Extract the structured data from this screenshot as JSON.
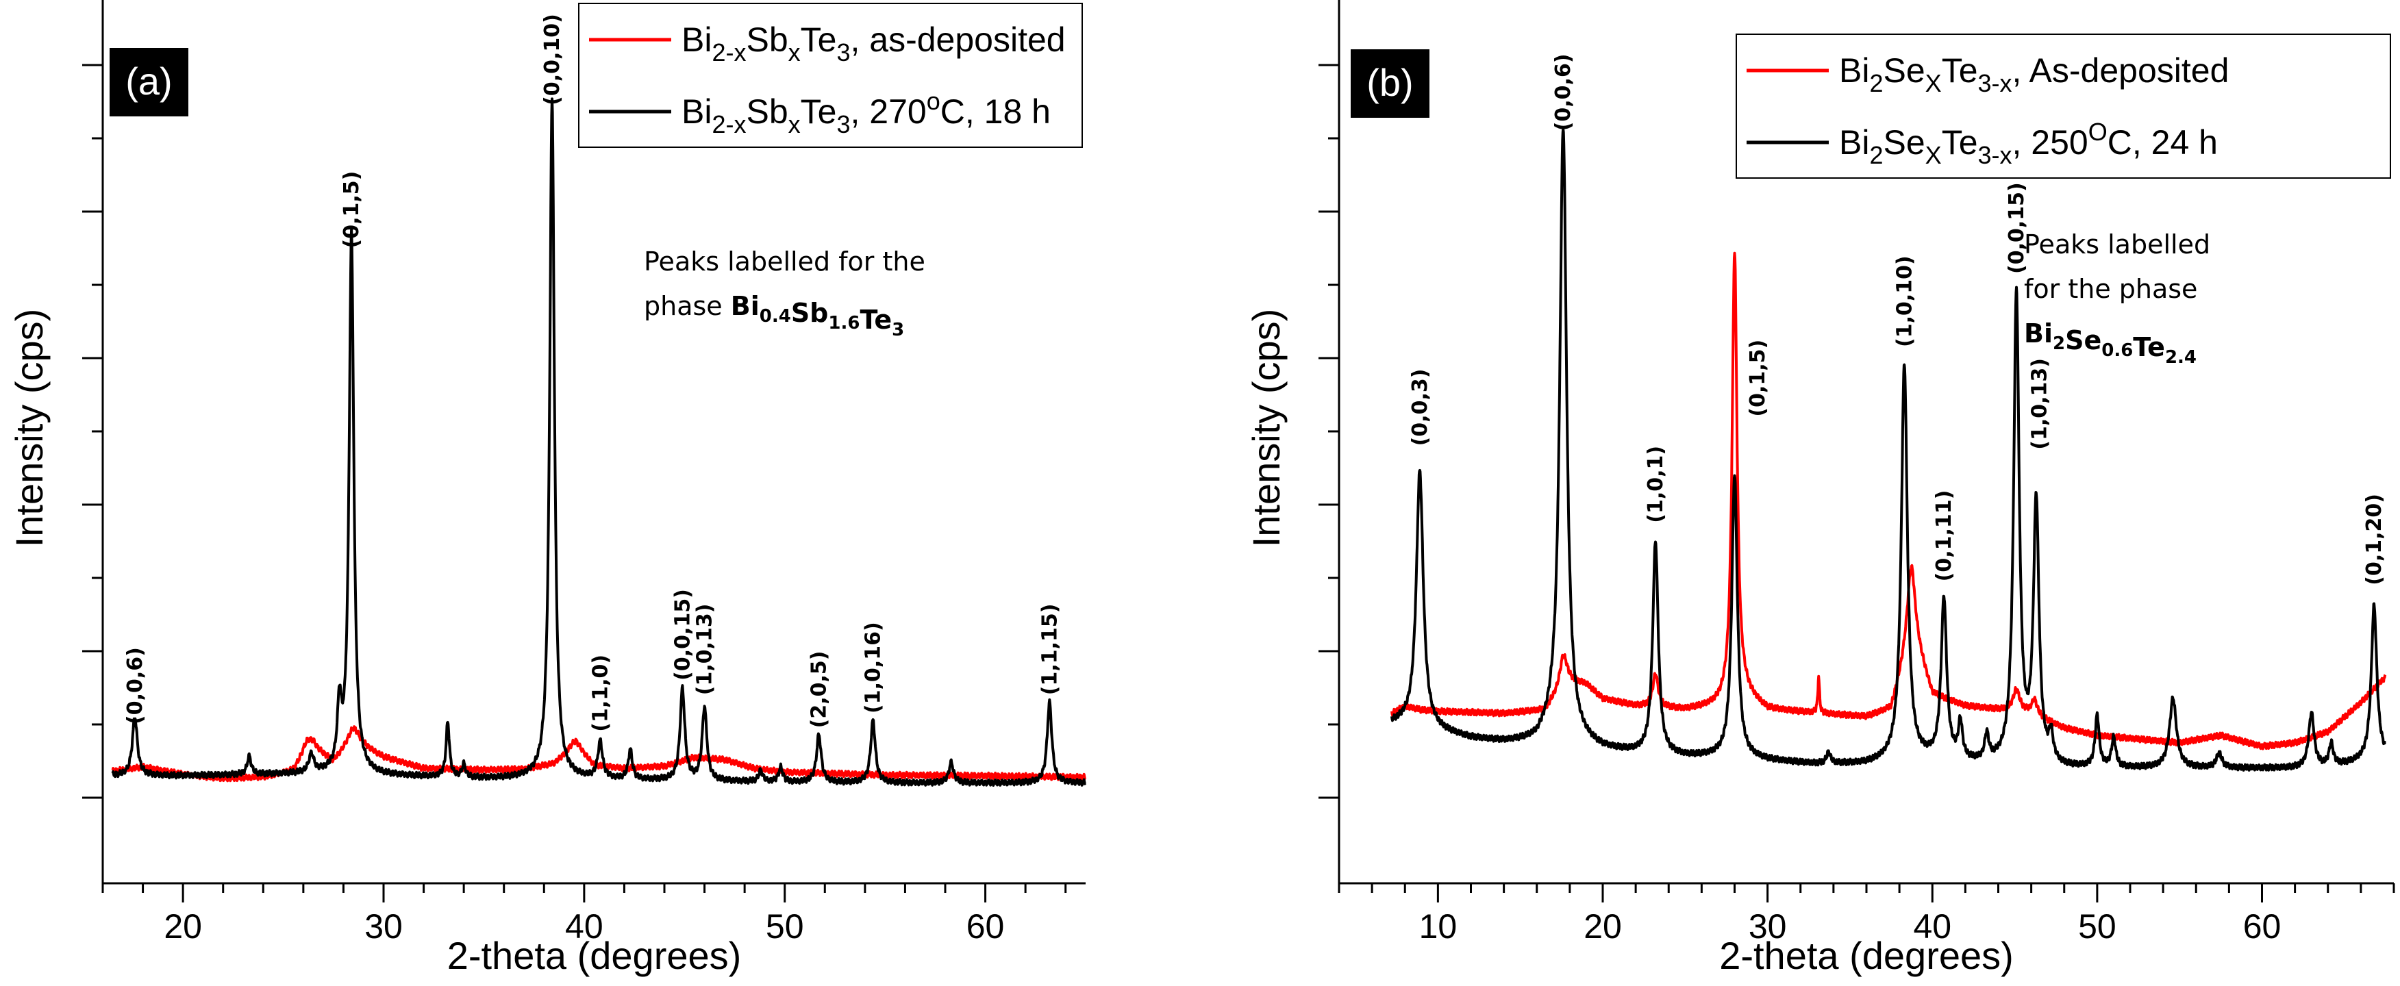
{
  "colors": {
    "as_deposited": "#ff0000",
    "annealed": "#000000",
    "panel_tag_bg": "#000000"
  },
  "chart_data": [
    {
      "type": "line",
      "panel_label": "(a)",
      "xlabel": "2-theta (degrees)",
      "ylabel": "Intensity (cps)",
      "xlim": [
        16,
        65
      ],
      "ylim": [
        0,
        100
      ],
      "x_ticks": [
        20,
        30,
        40,
        50,
        60
      ],
      "y_ticks_labeled": false,
      "grid": false,
      "legend_position": "top-right",
      "legend": [
        {
          "base": "Bi",
          "sub": "2-x",
          "base2": "Sb",
          "sub2": "x",
          "rest": "Te",
          "sub3": "3",
          "tail": ", as-deposited",
          "color": "#ff0000"
        },
        {
          "base": "Bi",
          "sub": "2-x",
          "base2": "Sb",
          "sub2": "x",
          "rest": "Te",
          "sub3": "3",
          "tail": ", 270",
          "sup": "o",
          "tail2": "C, 18 h",
          "color": "#000000"
        }
      ],
      "annotation": {
        "line1": "Peaks labelled for the",
        "line2_prefix": "phase ",
        "formula": [
          {
            "t": "Bi",
            "s": "0.4"
          },
          {
            "t": "Sb",
            "s": "1.6"
          },
          {
            "t": "Te",
            "s": "3"
          }
        ]
      },
      "series": [
        {
          "color": "#ff0000",
          "baseline": 3.5,
          "baseline_points": [
            [
              16.5,
              3.6
            ],
            [
              18,
              4.2
            ],
            [
              20,
              3.2
            ],
            [
              22,
              2.6
            ],
            [
              24,
              2.8
            ],
            [
              25.5,
              3.5
            ],
            [
              26.5,
              6.5
            ],
            [
              27.5,
              4.8
            ],
            [
              28.5,
              7.5
            ],
            [
              30,
              5.5
            ],
            [
              32,
              4.0
            ],
            [
              35,
              3.8
            ],
            [
              37,
              3.9
            ],
            [
              38.5,
              4.6
            ],
            [
              39.6,
              6.8
            ],
            [
              40.5,
              4.4
            ],
            [
              42,
              4.0
            ],
            [
              44,
              4.3
            ],
            [
              45.5,
              5.5
            ],
            [
              47,
              5.2
            ],
            [
              48.5,
              4.0
            ],
            [
              50,
              3.5
            ],
            [
              55,
              3.1
            ],
            [
              60,
              3.0
            ],
            [
              65,
              2.8
            ]
          ],
          "peaks": [
            [
              26.2,
              2.2,
              0.35
            ],
            [
              28.5,
              2.0,
              0.4
            ],
            [
              39.5,
              1.0,
              0.4
            ]
          ]
        },
        {
          "color": "#000000",
          "baseline_points": [
            [
              16.5,
              3.0
            ],
            [
              20,
              3.0
            ],
            [
              25,
              3.2
            ],
            [
              28,
              3.3
            ],
            [
              30,
              3.0
            ],
            [
              35,
              2.6
            ],
            [
              40,
              2.5
            ],
            [
              45,
              2.3
            ],
            [
              50,
              2.1
            ],
            [
              55,
              2.0
            ],
            [
              60,
              2.0
            ],
            [
              65,
              2.0
            ]
          ],
          "peaks": [
            [
              17.6,
              8.0,
              0.15
            ],
            [
              23.3,
              2.5,
              0.12
            ],
            [
              26.4,
              2.5,
              0.15
            ],
            [
              27.8,
              8.5,
              0.12
            ],
            [
              28.4,
              73.5,
              0.14
            ],
            [
              33.2,
              7.5,
              0.1
            ],
            [
              34.0,
              1.8,
              0.1
            ],
            [
              38.4,
              92.5,
              0.14
            ],
            [
              40.8,
              5.0,
              0.14
            ],
            [
              42.3,
              4.0,
              0.12
            ],
            [
              44.9,
              12.5,
              0.14
            ],
            [
              46.0,
              10.0,
              0.14
            ],
            [
              48.8,
              1.5,
              0.12
            ],
            [
              49.8,
              2.0,
              0.12
            ],
            [
              51.7,
              6.5,
              0.14
            ],
            [
              54.4,
              8.5,
              0.14
            ],
            [
              58.3,
              2.8,
              0.14
            ],
            [
              63.2,
              11.0,
              0.14
            ]
          ]
        }
      ],
      "peak_labels": [
        {
          "x": 17.6,
          "y": 10.0,
          "text": "(0,0,6)"
        },
        {
          "x": 28.4,
          "y": 75.0,
          "text": "(0,1,5)"
        },
        {
          "x": 38.4,
          "y": 94.5,
          "text": "(0,0,10)"
        },
        {
          "x": 40.8,
          "y": 9.0,
          "text": "(1,1,0)"
        },
        {
          "x": 44.9,
          "y": 16.0,
          "text": "(0,0,15)"
        },
        {
          "x": 46.0,
          "y": 14.0,
          "text": "(1,0,13)"
        },
        {
          "x": 51.7,
          "y": 9.5,
          "text": "(2,0,5)"
        },
        {
          "x": 54.4,
          "y": 11.5,
          "text": "(1,0,16)"
        },
        {
          "x": 63.2,
          "y": 14.0,
          "text": "(1,1,15)"
        }
      ]
    },
    {
      "type": "line",
      "panel_label": "(b)",
      "xlabel": "2-theta (degrees)",
      "ylabel": "Intensity (cps)",
      "xlim": [
        4,
        68
      ],
      "ylim": [
        0,
        100
      ],
      "x_ticks": [
        10,
        20,
        30,
        40,
        50,
        60
      ],
      "y_ticks_labeled": false,
      "grid": false,
      "legend_position": "top-right",
      "legend": [
        {
          "base": "Bi",
          "sub": "2",
          "base2": "Se",
          "sub2": "X",
          "rest": "Te",
          "sub3": "3-x",
          "tail": ", As-deposited",
          "color": "#ff0000"
        },
        {
          "base": "Bi",
          "sub": "2",
          "base2": "Se",
          "sub2": "X",
          "rest": "Te",
          "sub3": "3-x",
          "tail": ", 250",
          "sup": "O",
          "tail2": "C, 24 h",
          "color": "#000000"
        }
      ],
      "annotation": {
        "line1": "Peaks labelled",
        "line2": "for the phase",
        "formula": [
          {
            "t": "Bi",
            "s": "2"
          },
          {
            "t": "Se",
            "s": "0.6"
          },
          {
            "t": "Te",
            "s": "2.4"
          }
        ]
      },
      "series": [
        {
          "color": "#ff0000",
          "baseline_points": [
            [
              7.2,
              11.5
            ],
            [
              8,
              12.5
            ],
            [
              9,
              12.0
            ],
            [
              10,
              11.8
            ],
            [
              14,
              11.5
            ],
            [
              16.5,
              12.0
            ],
            [
              17.8,
              16.0
            ],
            [
              19,
              15.5
            ],
            [
              20,
              13.5
            ],
            [
              22,
              12.5
            ],
            [
              25,
              12.0
            ],
            [
              27,
              12.5
            ],
            [
              28.5,
              14.0
            ],
            [
              30,
              12.0
            ],
            [
              33,
              11.5
            ],
            [
              36,
              11.0
            ],
            [
              37.5,
              12.0
            ],
            [
              38.8,
              22.0
            ],
            [
              40,
              14.0
            ],
            [
              42,
              12.5
            ],
            [
              44,
              12.0
            ],
            [
              46,
              11.5
            ],
            [
              48,
              9.5
            ],
            [
              50,
              8.5
            ],
            [
              55,
              7.5
            ],
            [
              57.5,
              8.5
            ],
            [
              60,
              7.0
            ],
            [
              62,
              7.5
            ],
            [
              64,
              9.0
            ],
            [
              66,
              13.0
            ],
            [
              67.5,
              16.5
            ]
          ],
          "peaks": [
            [
              17.6,
              4.0,
              0.25
            ],
            [
              23.2,
              4.5,
              0.2
            ],
            [
              28.0,
              61.0,
              0.18
            ],
            [
              33.1,
              5.0,
              0.06
            ],
            [
              38.7,
              10.0,
              0.3
            ],
            [
              45.1,
              3.0,
              0.25
            ],
            [
              46.2,
              2.0,
              0.2
            ]
          ]
        },
        {
          "color": "#000000",
          "baseline_points": [
            [
              7.2,
              10.0
            ],
            [
              8,
              10.0
            ],
            [
              10,
              9.0
            ],
            [
              12,
              8.0
            ],
            [
              14,
              7.5
            ],
            [
              16,
              7.5
            ],
            [
              17,
              9.0
            ],
            [
              18.5,
              7.5
            ],
            [
              20,
              6.5
            ],
            [
              22,
              6.0
            ],
            [
              25,
              5.5
            ],
            [
              28,
              5.5
            ],
            [
              30,
              5.0
            ],
            [
              33,
              4.5
            ],
            [
              36,
              4.5
            ],
            [
              38,
              5.0
            ],
            [
              40,
              5.0
            ],
            [
              43,
              4.5
            ],
            [
              46,
              4.5
            ],
            [
              48,
              4.0
            ],
            [
              50,
              4.0
            ],
            [
              55,
              4.0
            ],
            [
              60,
              4.0
            ],
            [
              63,
              4.0
            ],
            [
              65,
              4.5
            ],
            [
              67.5,
              5.5
            ]
          ],
          "peaks": [
            [
              8.9,
              35.0,
              0.25
            ],
            [
              17.6,
              83.0,
              0.25
            ],
            [
              23.2,
              29.0,
              0.2
            ],
            [
              28.0,
              38.5,
              0.2
            ],
            [
              33.7,
              1.5,
              0.15
            ],
            [
              38.3,
              54.0,
              0.22
            ],
            [
              40.7,
              22.0,
              0.2
            ],
            [
              41.7,
              5.0,
              0.15
            ],
            [
              43.3,
              3.5,
              0.15
            ],
            [
              45.1,
              64.0,
              0.2
            ],
            [
              46.3,
              35.5,
              0.2
            ],
            [
              47.2,
              3.5,
              0.15
            ],
            [
              50.0,
              7.0,
              0.15
            ],
            [
              51.0,
              4.0,
              0.15
            ],
            [
              54.6,
              9.5,
              0.25
            ],
            [
              57.4,
              2.0,
              0.2
            ],
            [
              63.0,
              7.5,
              0.2
            ],
            [
              64.2,
              3.0,
              0.15
            ],
            [
              66.8,
              21.0,
              0.2
            ]
          ]
        }
      ],
      "peak_labels": [
        {
          "x": 8.9,
          "y": 48.0,
          "text": "(0,0,3)"
        },
        {
          "x": 17.6,
          "y": 91.0,
          "text": "(0,0,6)"
        },
        {
          "x": 23.2,
          "y": 37.5,
          "text": "(1,0,1)"
        },
        {
          "x": 29.4,
          "y": 52.0,
          "text": "(0,1,5)"
        },
        {
          "x": 38.3,
          "y": 61.5,
          "text": "(1,0,10)"
        },
        {
          "x": 40.7,
          "y": 29.5,
          "text": "(0,1,11)"
        },
        {
          "x": 45.1,
          "y": 71.5,
          "text": "(0,0,15)"
        },
        {
          "x": 46.5,
          "y": 47.5,
          "text": "(1,0,13)"
        },
        {
          "x": 66.8,
          "y": 29.0,
          "text": "(0,1,20)"
        }
      ]
    }
  ]
}
